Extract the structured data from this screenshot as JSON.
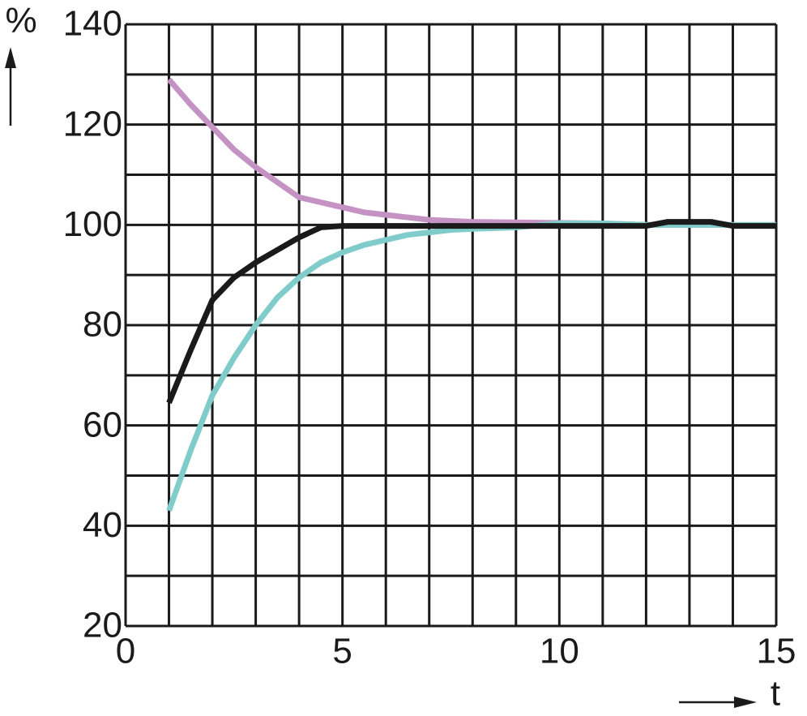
{
  "chart_data": {
    "type": "line",
    "y_label": "%",
    "x_label": "t",
    "x": [
      1,
      1.5,
      2,
      2.5,
      3,
      3.5,
      4,
      4.5,
      5,
      5.5,
      6,
      6.5,
      7,
      7.5,
      8,
      9,
      10,
      11,
      12,
      12.5,
      13,
      13.5,
      14,
      15
    ],
    "series": [
      {
        "color": "#c493c4",
        "values": [
          129,
          124,
          119.5,
          115,
          111.5,
          108.5,
          105.5,
          104.5,
          103.5,
          102.5,
          102,
          101.5,
          101,
          100.8,
          100.6,
          100.5,
          100.4,
          100.3,
          100,
          100,
          100,
          100,
          100,
          100
        ]
      },
      {
        "color": "#80cccb",
        "values": [
          43,
          55,
          66,
          73.5,
          80,
          85.5,
          89.5,
          92.5,
          94.5,
          96,
          97,
          98,
          98.5,
          99,
          99.2,
          99.5,
          100.3,
          100.3,
          100,
          100,
          100,
          100,
          100,
          100
        ]
      },
      {
        "color": "#1a1a1a",
        "values": [
          64.5,
          75,
          85,
          89.5,
          92.5,
          95,
          97.5,
          99.5,
          99.8,
          99.8,
          99.8,
          99.8,
          99.8,
          99.8,
          99.8,
          99.8,
          99.8,
          99.8,
          99.8,
          100.6,
          100.6,
          100.6,
          99.8,
          99.8
        ]
      }
    ],
    "xlim": [
      0,
      15
    ],
    "ylim": [
      20,
      140
    ],
    "xticks": [
      0,
      5,
      10,
      15
    ],
    "yticks": [
      20,
      40,
      60,
      80,
      100,
      120,
      140
    ],
    "x_gridlines": [
      0,
      1,
      2,
      3,
      4,
      5,
      6,
      7,
      8,
      9,
      10,
      11,
      12,
      13,
      14,
      15
    ],
    "y_gridlines": [
      20,
      30,
      40,
      50,
      60,
      70,
      80,
      90,
      100,
      110,
      120,
      130,
      140
    ],
    "grid": true
  }
}
